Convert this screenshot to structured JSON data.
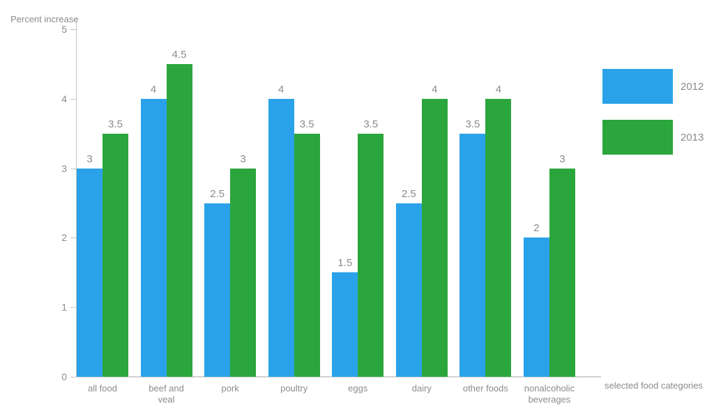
{
  "chart_data": {
    "type": "bar",
    "title": "",
    "ylabel": "Percent increase",
    "xlabel": "selected food categories",
    "categories": [
      "all food",
      "beef and veal",
      "pork",
      "poultry",
      "eggs",
      "dairy",
      "other foods",
      "nonalcoholic beverages"
    ],
    "series": [
      {
        "name": "2012",
        "color": "#2AA2E9",
        "values": [
          3,
          4,
          2.5,
          4,
          1.5,
          2.5,
          3.5,
          2
        ]
      },
      {
        "name": "2013",
        "color": "#2BA63C",
        "values": [
          3.5,
          4.5,
          3,
          3.5,
          3.5,
          4,
          4,
          3
        ]
      }
    ],
    "ylim": [
      0,
      5
    ],
    "yticks": [
      0,
      1,
      2,
      3,
      4,
      5
    ],
    "grid": false,
    "legend_position": "right",
    "bar_value_labels": true,
    "axis_color": "#c4c4c4",
    "text_color": "#8b8b8b"
  }
}
